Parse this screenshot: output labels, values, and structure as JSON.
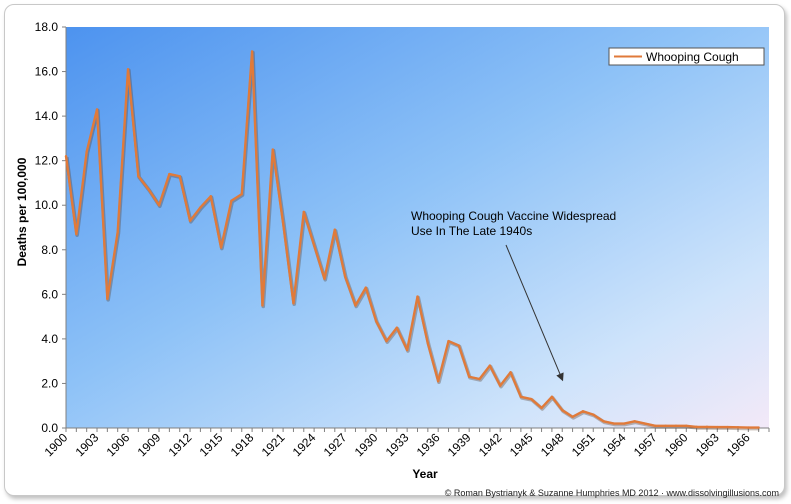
{
  "chart_data": {
    "type": "line",
    "title": "",
    "xlabel": "Year",
    "ylabel": "Deaths per 100,000",
    "xlim": [
      1900,
      1968
    ],
    "ylim": [
      0,
      18
    ],
    "y_ticks": [
      "0.0",
      "2.0",
      "4.0",
      "6.0",
      "8.0",
      "10.0",
      "12.0",
      "14.0",
      "16.0",
      "18.0"
    ],
    "x_tick_labels": [
      "1900",
      "1903",
      "1906",
      "1909",
      "1912",
      "1915",
      "1918",
      "1921",
      "1924",
      "1927",
      "1930",
      "1933",
      "1936",
      "1939",
      "1942",
      "1945",
      "1948",
      "1951",
      "1954",
      "1957",
      "1960",
      "1963",
      "1966"
    ],
    "legend": {
      "position": "top-right",
      "label": "Whooping Cough"
    },
    "series": [
      {
        "name": "Whooping Cough",
        "color": "#e07a3a",
        "x": [
          1900,
          1901,
          1902,
          1903,
          1904,
          1905,
          1906,
          1907,
          1908,
          1909,
          1910,
          1911,
          1912,
          1913,
          1914,
          1915,
          1916,
          1917,
          1918,
          1919,
          1920,
          1921,
          1922,
          1923,
          1924,
          1925,
          1926,
          1927,
          1928,
          1929,
          1930,
          1931,
          1932,
          1933,
          1934,
          1935,
          1936,
          1937,
          1938,
          1939,
          1940,
          1941,
          1942,
          1943,
          1944,
          1945,
          1946,
          1947,
          1948,
          1949,
          1950,
          1951,
          1952,
          1953,
          1954,
          1955,
          1956,
          1957,
          1958,
          1959,
          1960,
          1961,
          1962,
          1963,
          1964,
          1965,
          1966,
          1967
        ],
        "values": [
          12.2,
          8.7,
          12.4,
          14.3,
          5.8,
          8.8,
          16.1,
          11.3,
          10.7,
          10.0,
          11.4,
          11.3,
          9.3,
          9.9,
          10.4,
          8.1,
          10.2,
          10.5,
          16.9,
          5.5,
          12.5,
          9.2,
          5.6,
          9.7,
          8.2,
          6.7,
          8.9,
          6.8,
          5.5,
          6.3,
          4.8,
          3.9,
          4.5,
          3.5,
          5.9,
          3.8,
          2.1,
          3.9,
          3.7,
          2.3,
          2.2,
          2.8,
          1.9,
          2.5,
          1.4,
          1.3,
          0.9,
          1.4,
          0.8,
          0.5,
          0.75,
          0.6,
          0.3,
          0.2,
          0.2,
          0.3,
          0.2,
          0.1,
          0.1,
          0.1,
          0.1,
          0.05,
          0.05,
          0.04,
          0.04,
          0.03,
          0.02,
          0.02
        ]
      }
    ],
    "annotation": {
      "line1": "Whooping Cough  Vaccine Widespread",
      "line2": "Use In The Late 1940s",
      "arrow_target": [
        1948,
        2.0
      ]
    },
    "credit": "© Roman Bystrianyk & Suzanne Humphries MD 2012 · www.dissolvingillusions.com"
  }
}
